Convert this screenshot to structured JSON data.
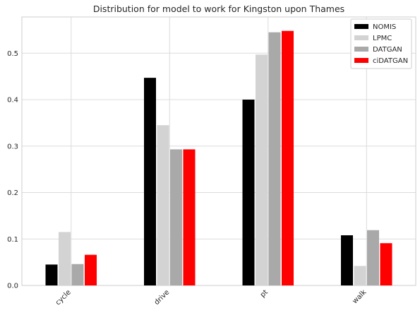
{
  "chart_data": {
    "type": "bar",
    "title": "Distribution for model to work for Kingston upon Thames",
    "xlabel": "",
    "ylabel": "",
    "categories": [
      "cycle",
      "drive",
      "pt",
      "walk"
    ],
    "ylim": [
      0,
      0.578
    ],
    "yticks": [
      "0.0",
      "0.1",
      "0.2",
      "0.3",
      "0.4",
      "0.5"
    ],
    "grid": true,
    "legend_position": "top-right",
    "series": [
      {
        "name": "NOMIS",
        "color": "#000000",
        "values": [
          0.045,
          0.447,
          0.4,
          0.108
        ]
      },
      {
        "name": "LPMC",
        "color": "#d3d3d3",
        "values": [
          0.115,
          0.345,
          0.497,
          0.042
        ]
      },
      {
        "name": "DATGAN",
        "color": "#a9a9a9",
        "values": [
          0.046,
          0.293,
          0.545,
          0.119
        ]
      },
      {
        "name": "ciDATGAN",
        "color": "#ff0000",
        "values": [
          0.066,
          0.293,
          0.548,
          0.091
        ]
      }
    ]
  }
}
